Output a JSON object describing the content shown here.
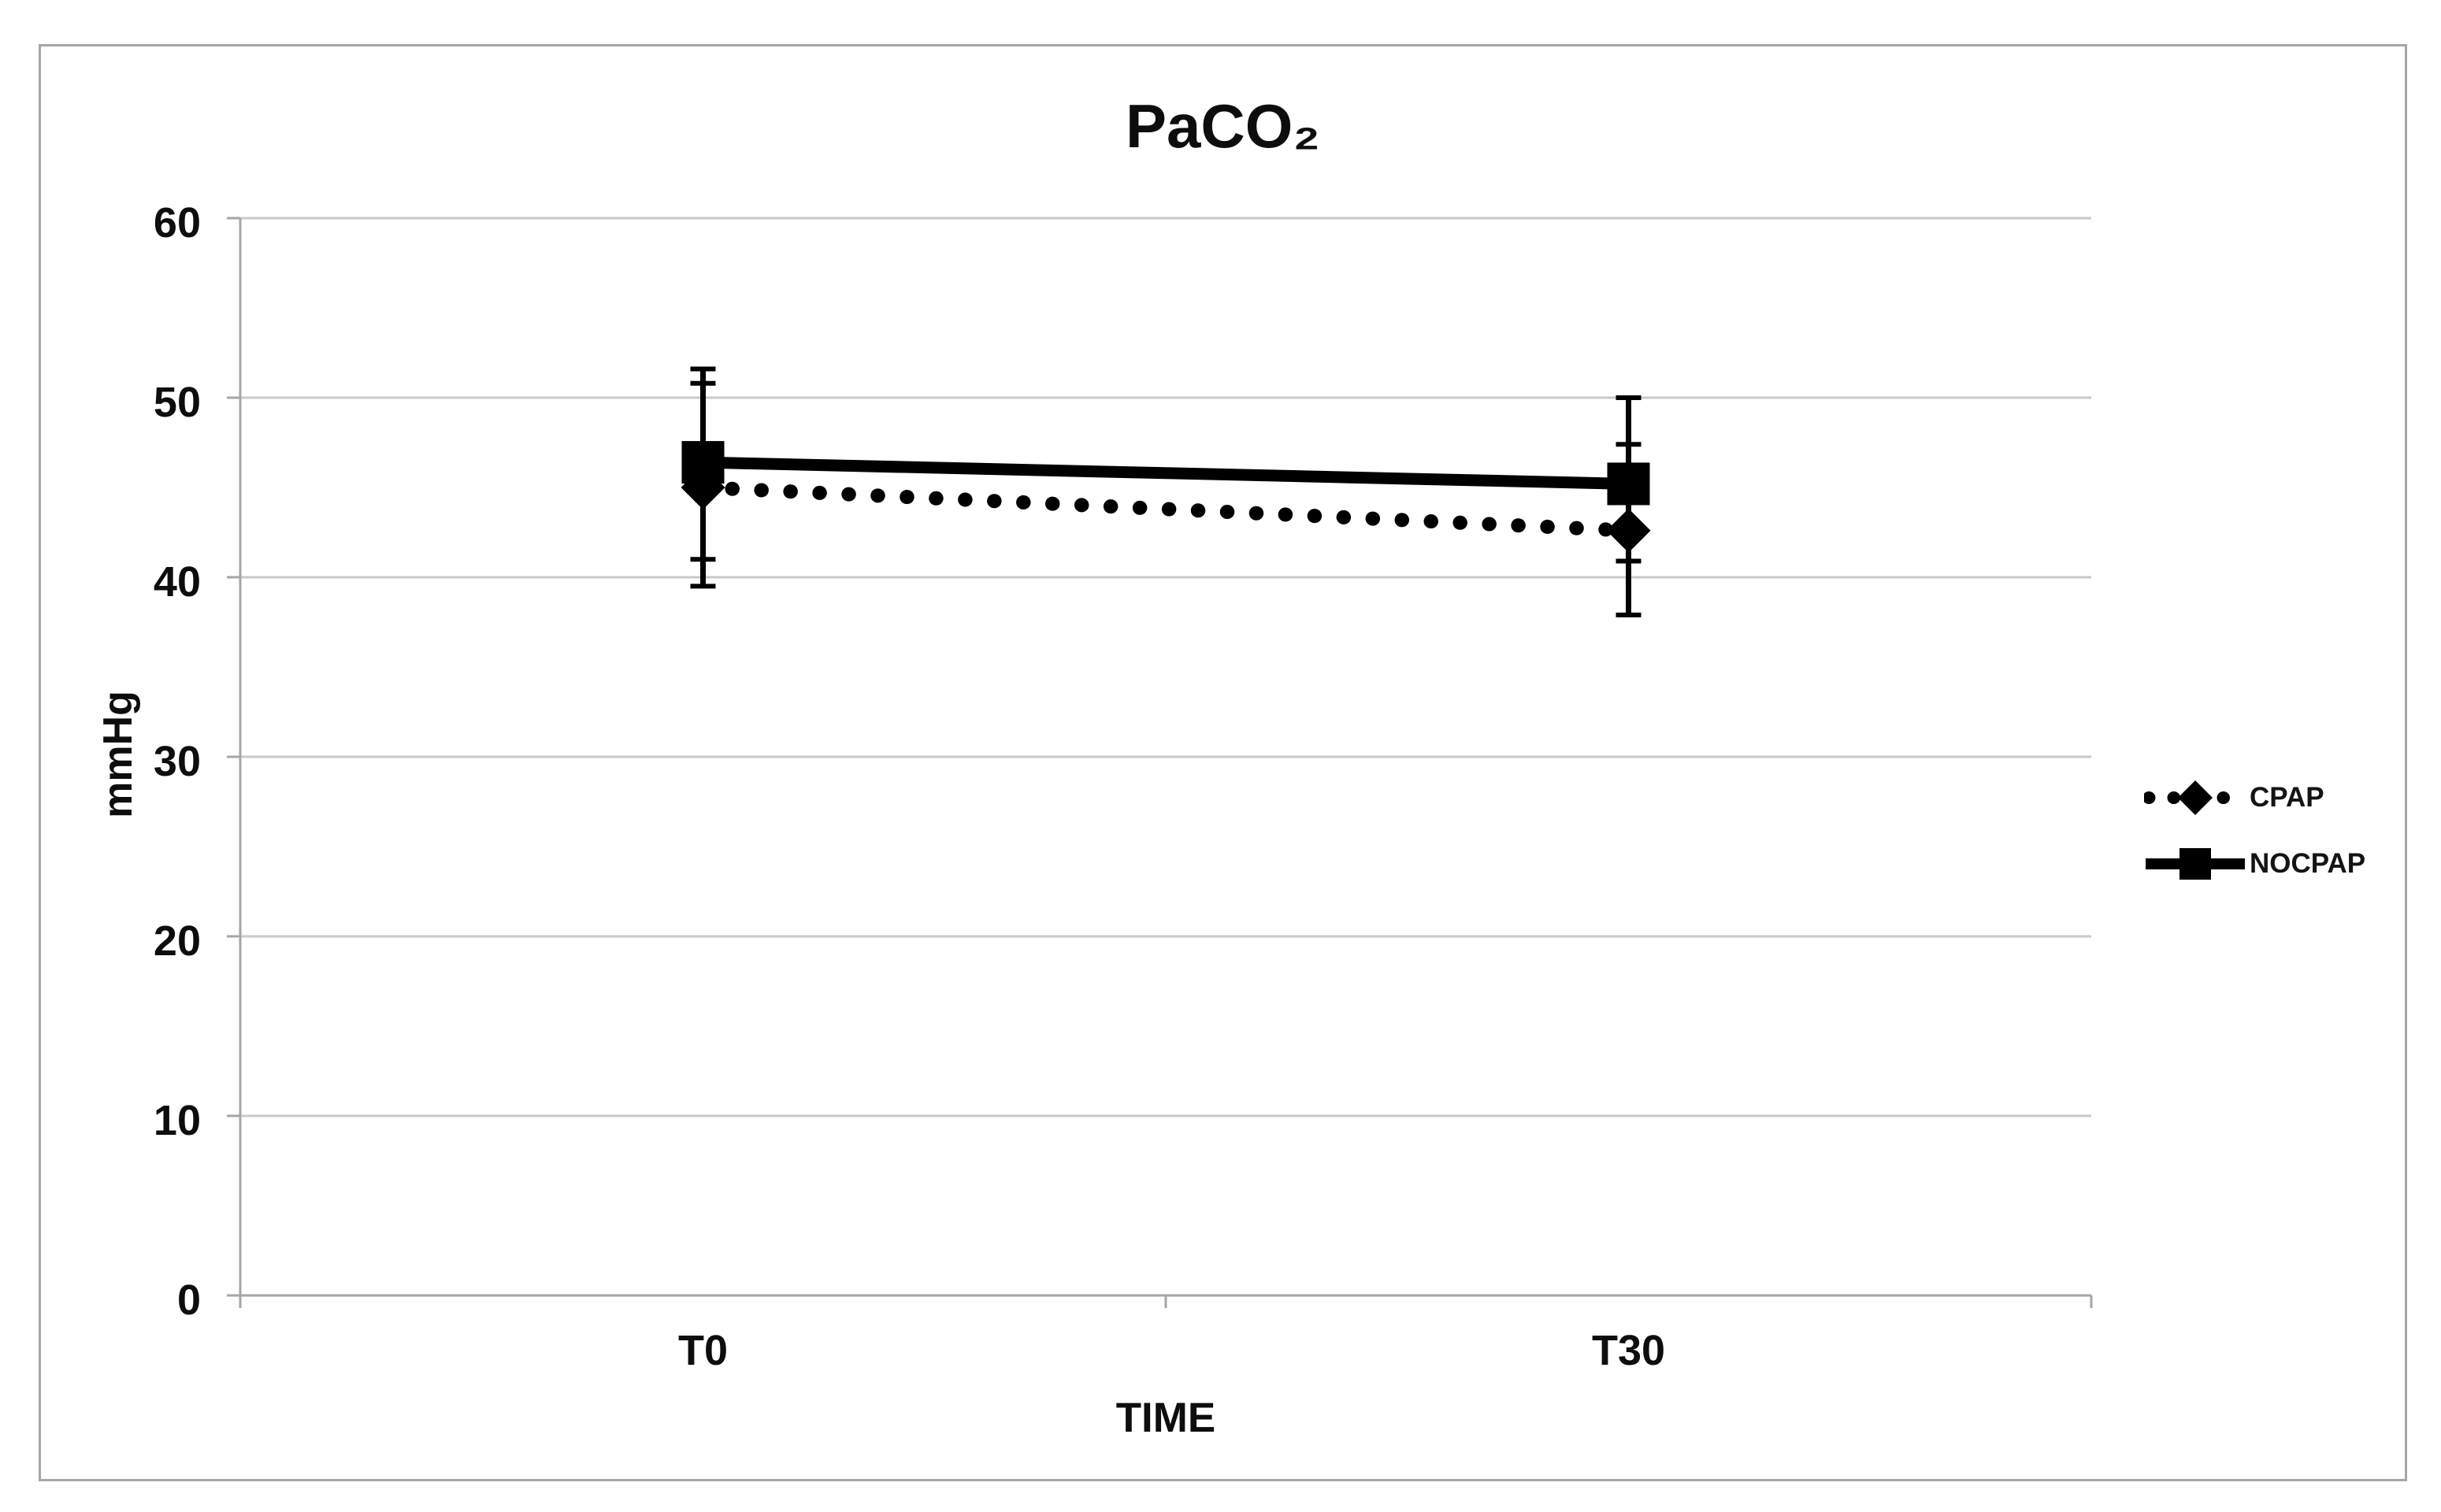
{
  "figure": {
    "border_color": "#a6a6a6",
    "background": "#ffffff"
  },
  "chart_data": {
    "type": "line",
    "title": "PaCO₂",
    "xlabel": "TIME",
    "ylabel": "mmHg",
    "categories": [
      "T0",
      "T30"
    ],
    "y_ticks": [
      0,
      10,
      20,
      30,
      40,
      50,
      60
    ],
    "ylim": [
      0,
      60
    ],
    "grid": true,
    "legend_position": "right-middle",
    "error_bars": true,
    "colors": {
      "series": "#000000",
      "grid": "#c9c9c9",
      "axis": "#a6a6a6",
      "text": "#0d0d0d"
    },
    "series": [
      {
        "name": "CPAP",
        "marker": "diamond",
        "line": "dotted",
        "values": [
          45.0,
          42.6
        ],
        "err_upper": [
          50.8,
          47.4
        ],
        "err_lower": [
          39.5,
          37.9
        ]
      },
      {
        "name": "NOCPAP",
        "marker": "square",
        "line": "solid",
        "values": [
          46.4,
          45.2
        ],
        "err_upper": [
          51.6,
          50.0
        ],
        "err_lower": [
          41.0,
          40.9
        ]
      }
    ]
  }
}
